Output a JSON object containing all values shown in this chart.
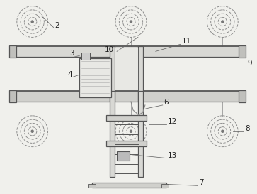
{
  "bg_color": "#f0f0ec",
  "lc": "#999999",
  "dc": "#555555",
  "fig_width": 3.63,
  "fig_height": 2.73,
  "dpi": 100
}
